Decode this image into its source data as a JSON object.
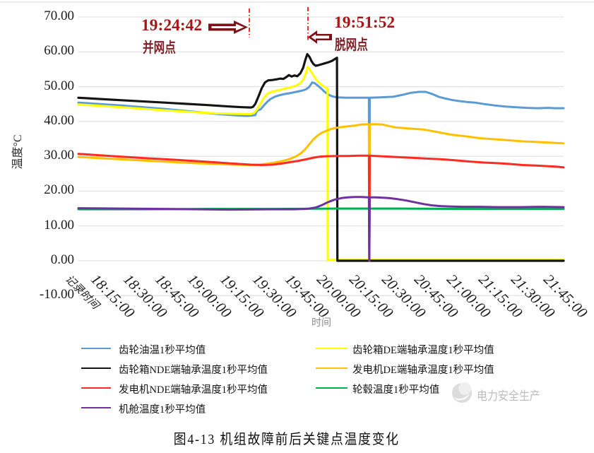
{
  "annotations": {
    "grid_connect": {
      "time": "19:24:42",
      "label": "并网点"
    },
    "grid_disconnect": {
      "time": "19:51:52",
      "label": "脱网点"
    },
    "line_color": "#FF2A2A",
    "arrow_color": "#7E1216"
  },
  "watermark": {
    "text": "电力安全生产"
  },
  "caption": "图4-13 机组故障前后关键点温度变化",
  "chart_data": {
    "type": "line",
    "xlabel": "时间",
    "ylabel": "温度°C",
    "ylim": [
      -10,
      70
    ],
    "ytick_labels": [
      "70.00",
      "60.00",
      "50.00",
      "40.00",
      "30.00",
      "20.00",
      "10.00",
      "0.00",
      "-10.00"
    ],
    "ytick_values": [
      70,
      60,
      50,
      40,
      30,
      20,
      10,
      0,
      -10
    ],
    "x_categories": [
      "记录时间",
      "18:15:00",
      "18:30:00",
      "18:45:00",
      "19:00:00",
      "19:15:00",
      "19:30:00",
      "19:45:00",
      "20:00:00",
      "20:15:00",
      "20:30:00",
      "20:45:00",
      "21:00:00",
      "21:15:00",
      "21:30:00",
      "21:45:00"
    ],
    "grid_color": "#DBDBDB",
    "series": [
      {
        "name": "齿轮油温1秒平均值",
        "color": "#5B9BD5",
        "width": 3,
        "points": [
          [
            0,
            45.4
          ],
          [
            20,
            44.6
          ],
          [
            40,
            43.6
          ],
          [
            55,
            42.7
          ],
          [
            65,
            42.1
          ],
          [
            72,
            41.8
          ],
          [
            78,
            41.6
          ],
          [
            82,
            41.8
          ],
          [
            82.6,
            42.8
          ],
          [
            83.3,
            43.2
          ],
          [
            84.5,
            43.5
          ],
          [
            86,
            44.6
          ],
          [
            87.5,
            45.6
          ],
          [
            89,
            46.4
          ],
          [
            91,
            47.1
          ],
          [
            93,
            47.5
          ],
          [
            95,
            47.8
          ],
          [
            98,
            48.1
          ],
          [
            101,
            48.5
          ],
          [
            104,
            48.9
          ],
          [
            105.5,
            49.2
          ],
          [
            107,
            49.9
          ],
          [
            108.4,
            51.2
          ],
          [
            109.5,
            51.0
          ],
          [
            111,
            50.3
          ],
          [
            112.5,
            49.5
          ],
          [
            114,
            48.6
          ],
          [
            115.5,
            47.9
          ],
          [
            117,
            47.4
          ],
          [
            118.5,
            47.1
          ],
          [
            120,
            46.9
          ],
          [
            124,
            46.8
          ],
          [
            130,
            46.8
          ],
          [
            134.7,
            46.8
          ],
          [
            134.9,
            0
          ],
          [
            135.1,
            46.8
          ],
          [
            140,
            46.9
          ],
          [
            146,
            47.1
          ],
          [
            150,
            47.6
          ],
          [
            154,
            48.2
          ],
          [
            158,
            48.5
          ],
          [
            161,
            48.5
          ],
          [
            164,
            47.9
          ],
          [
            167,
            47.1
          ],
          [
            170,
            46.6
          ],
          [
            173,
            46.2
          ],
          [
            176,
            45.9
          ],
          [
            180,
            45.6
          ],
          [
            184,
            45.4
          ],
          [
            188,
            45.0
          ],
          [
            193,
            44.6
          ],
          [
            198,
            44.3
          ],
          [
            203,
            44.1
          ],
          [
            208,
            43.9
          ],
          [
            213,
            43.8
          ],
          [
            218,
            43.9
          ],
          [
            221,
            43.8
          ],
          [
            225,
            43.8
          ]
        ]
      },
      {
        "name": "齿轮箱DE端轴承温度1秒平均值",
        "color": "#FFFF00",
        "width": 3,
        "points": [
          [
            0,
            44.9
          ],
          [
            20,
            44.1
          ],
          [
            40,
            43.2
          ],
          [
            55,
            42.6
          ],
          [
            65,
            42.3
          ],
          [
            75,
            42.15
          ],
          [
            80,
            42.1
          ],
          [
            81.5,
            42.4
          ],
          [
            83,
            43.5
          ],
          [
            84.5,
            45.2
          ],
          [
            86,
            46.8
          ],
          [
            87.5,
            47.9
          ],
          [
            89,
            48.4
          ],
          [
            91,
            48.7
          ],
          [
            93,
            49.0
          ],
          [
            95,
            49.3
          ],
          [
            97,
            49.6
          ],
          [
            99,
            49.9
          ],
          [
            101,
            50.3
          ],
          [
            103,
            51.0
          ],
          [
            104.5,
            52.2
          ],
          [
            105.5,
            53.8
          ],
          [
            106.3,
            55.7
          ],
          [
            107.3,
            54.9
          ],
          [
            108.5,
            53.7
          ],
          [
            110,
            52.3
          ],
          [
            111.5,
            51.2
          ],
          [
            113,
            50.4
          ],
          [
            114.5,
            49.8
          ],
          [
            115.5,
            49.4
          ],
          [
            115.6,
            0.25
          ],
          [
            225,
            0.25
          ]
        ]
      },
      {
        "name": "齿轮箱NDE端轴承温度1秒平均值",
        "color": "#141414",
        "width": 3.2,
        "points": [
          [
            0,
            46.8
          ],
          [
            20,
            46.1
          ],
          [
            40,
            45.4
          ],
          [
            60,
            44.7
          ],
          [
            70,
            44.3
          ],
          [
            76,
            44.1
          ],
          [
            80,
            44.0
          ],
          [
            81,
            44.2
          ],
          [
            82,
            45.0
          ],
          [
            83.5,
            47.2
          ],
          [
            85,
            49.5
          ],
          [
            86.5,
            51.2
          ],
          [
            88,
            51.8
          ],
          [
            90,
            51.9
          ],
          [
            92,
            52.1
          ],
          [
            93.7,
            52.3
          ],
          [
            95,
            52.2
          ],
          [
            96.3,
            52.7
          ],
          [
            97.6,
            53.3
          ],
          [
            98.9,
            52.9
          ],
          [
            100.2,
            53.2
          ],
          [
            101.5,
            53.0
          ],
          [
            102.9,
            53.8
          ],
          [
            104.2,
            55.4
          ],
          [
            105.2,
            57.6
          ],
          [
            106.1,
            59.3
          ],
          [
            107.1,
            58.6
          ],
          [
            108.1,
            57.3
          ],
          [
            109.1,
            56.4
          ],
          [
            110,
            56.0
          ],
          [
            111,
            56.1
          ],
          [
            112.7,
            56.4
          ],
          [
            114.3,
            56.7
          ],
          [
            115.9,
            57.0
          ],
          [
            117.6,
            57.4
          ],
          [
            118.9,
            57.9
          ],
          [
            119.9,
            58.3
          ],
          [
            120.1,
            0
          ],
          [
            225,
            0
          ]
        ]
      },
      {
        "name": "发电机DE端轴承温度1秒平均值",
        "color": "#FFC000",
        "width": 3,
        "points": [
          [
            0,
            29.8
          ],
          [
            15,
            29.3
          ],
          [
            30,
            28.8
          ],
          [
            45,
            28.3
          ],
          [
            55,
            28.0
          ],
          [
            65,
            27.8
          ],
          [
            72,
            27.6
          ],
          [
            80,
            27.5
          ],
          [
            84,
            27.6
          ],
          [
            88,
            27.9
          ],
          [
            92,
            28.3
          ],
          [
            95,
            28.7
          ],
          [
            98,
            29.2
          ],
          [
            101,
            30.0
          ],
          [
            103,
            30.8
          ],
          [
            105,
            31.9
          ],
          [
            107,
            33.4
          ],
          [
            109,
            34.9
          ],
          [
            111,
            36.0
          ],
          [
            113,
            36.8
          ],
          [
            115,
            37.3
          ],
          [
            117,
            37.8
          ],
          [
            119,
            38.1
          ],
          [
            122,
            38.4
          ],
          [
            125,
            38.6
          ],
          [
            128,
            38.8
          ],
          [
            131,
            39.1
          ],
          [
            134.7,
            39.2
          ],
          [
            134.9,
            0
          ],
          [
            135.1,
            39.2
          ],
          [
            138,
            39.2
          ],
          [
            141,
            39.1
          ],
          [
            147,
            38.3
          ],
          [
            153,
            38.0
          ],
          [
            160,
            37.7
          ],
          [
            167,
            36.9
          ],
          [
            173,
            36.2
          ],
          [
            180,
            35.7
          ],
          [
            186,
            35.2
          ],
          [
            193,
            34.9
          ],
          [
            199.5,
            34.6
          ],
          [
            206,
            34.3
          ],
          [
            212.6,
            34.1
          ],
          [
            219,
            33.9
          ],
          [
            225,
            33.7
          ]
        ]
      },
      {
        "name": "发电机NDE端轴承温度1秒平均值",
        "color": "#FF2B20",
        "width": 3,
        "points": [
          [
            0,
            30.7
          ],
          [
            15,
            30.1
          ],
          [
            30,
            29.5
          ],
          [
            45,
            29.0
          ],
          [
            55,
            28.6
          ],
          [
            65,
            28.2
          ],
          [
            72,
            27.9
          ],
          [
            80,
            27.6
          ],
          [
            85,
            27.5
          ],
          [
            90,
            27.6
          ],
          [
            94,
            27.9
          ],
          [
            98,
            28.3
          ],
          [
            102,
            28.7
          ],
          [
            106,
            29.2
          ],
          [
            109,
            29.6
          ],
          [
            112,
            29.9
          ],
          [
            115,
            30.0
          ],
          [
            120,
            30.1
          ],
          [
            125,
            30.1
          ],
          [
            130,
            30.2
          ],
          [
            134.7,
            30.2
          ],
          [
            134.9,
            0
          ],
          [
            135.1,
            30.2
          ],
          [
            138,
            30.1
          ],
          [
            144,
            29.9
          ],
          [
            150,
            29.7
          ],
          [
            157,
            29.5
          ],
          [
            163,
            29.3
          ],
          [
            167,
            29.2
          ],
          [
            174,
            28.9
          ],
          [
            181,
            28.5
          ],
          [
            188,
            28.2
          ],
          [
            195,
            28.0
          ],
          [
            200,
            27.8
          ],
          [
            206,
            27.5
          ],
          [
            213,
            27.3
          ],
          [
            219,
            27.1
          ],
          [
            222,
            27.0
          ],
          [
            225,
            26.8
          ]
        ]
      },
      {
        "name": "轮毂温度1秒平均值",
        "color": "#00B050",
        "width": 3,
        "points": [
          [
            0,
            14.8
          ],
          [
            30,
            14.8
          ],
          [
            60,
            14.9
          ],
          [
            90,
            14.9
          ],
          [
            120,
            15.0
          ],
          [
            150,
            15.0
          ],
          [
            180,
            14.9
          ],
          [
            210,
            14.9
          ],
          [
            225,
            14.9
          ]
        ]
      },
      {
        "name": "机舱温度1秒平均值",
        "color": "#7030A0",
        "width": 3,
        "points": [
          [
            0,
            15.1
          ],
          [
            20,
            15.0
          ],
          [
            40,
            14.9
          ],
          [
            55,
            14.8
          ],
          [
            70,
            14.7
          ],
          [
            90,
            14.8
          ],
          [
            100,
            14.8
          ],
          [
            105,
            14.9
          ],
          [
            107,
            15.0
          ],
          [
            110,
            15.3
          ],
          [
            113,
            16.0
          ],
          [
            116,
            16.9
          ],
          [
            119,
            17.6
          ],
          [
            122,
            18.0
          ],
          [
            125,
            18.2
          ],
          [
            128,
            18.3
          ],
          [
            131,
            18.3
          ],
          [
            134.7,
            18.2
          ],
          [
            134.9,
            0
          ],
          [
            135.1,
            18.2
          ],
          [
            138,
            18.2
          ],
          [
            141,
            18.1
          ],
          [
            144,
            18.0
          ],
          [
            148,
            17.7
          ],
          [
            152,
            17.3
          ],
          [
            156,
            16.8
          ],
          [
            160,
            16.3
          ],
          [
            164,
            15.9
          ],
          [
            168,
            15.7
          ],
          [
            172,
            15.6
          ],
          [
            178,
            15.5
          ],
          [
            186,
            15.5
          ],
          [
            195,
            15.4
          ],
          [
            205,
            15.4
          ],
          [
            215,
            15.5
          ],
          [
            225,
            15.4
          ]
        ]
      }
    ],
    "legend_columns": {
      "left": [
        0,
        2,
        4,
        6
      ],
      "right": [
        1,
        3,
        5
      ]
    }
  }
}
